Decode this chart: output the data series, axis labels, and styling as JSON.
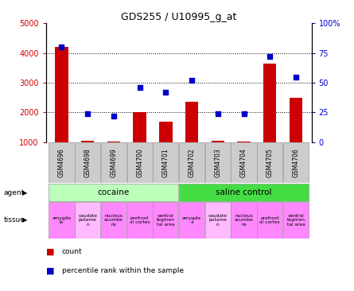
{
  "title": "GDS255 / U10995_g_at",
  "samples": [
    "GSM4696",
    "GSM4698",
    "GSM4699",
    "GSM4700",
    "GSM4701",
    "GSM4702",
    "GSM4703",
    "GSM4704",
    "GSM4705",
    "GSM4706"
  ],
  "counts": [
    4200,
    1050,
    1020,
    2000,
    1700,
    2350,
    1050,
    1020,
    3650,
    2500
  ],
  "percentiles": [
    80,
    24,
    22,
    46,
    42,
    52,
    24,
    24,
    72,
    55
  ],
  "ylim_left": [
    1000,
    5000
  ],
  "ylim_right": [
    0,
    100
  ],
  "yticks_left": [
    1000,
    2000,
    3000,
    4000,
    5000
  ],
  "yticks_right": [
    0,
    25,
    50,
    75,
    100
  ],
  "bar_color": "#cc0000",
  "scatter_color": "#0000cc",
  "agent_cocaine_color": "#bbffbb",
  "agent_saline_color": "#44dd44",
  "sample_bg_color": "#cccccc",
  "agent_groups": [
    {
      "label": "cocaine",
      "start": 0,
      "end": 5
    },
    {
      "label": "saline control",
      "start": 5,
      "end": 10
    }
  ],
  "tissue_labels": [
    {
      "label": "amygda\nla",
      "color": "#ff88ff"
    },
    {
      "label": "caudate\nputame\nn",
      "color": "#ffbbff"
    },
    {
      "label": "nucleus\nacumbe\nns",
      "color": "#ff88ff"
    },
    {
      "label": "prefront\nal cortex",
      "color": "#ff88ff"
    },
    {
      "label": "ventral\ntegmen\ntal area",
      "color": "#ff88ff"
    },
    {
      "label": "amygda\na",
      "color": "#ff88ff"
    },
    {
      "label": "caudate\nputame\nn",
      "color": "#ffbbff"
    },
    {
      "label": "nucleus\nacumbe\nns",
      "color": "#ff88ff"
    },
    {
      "label": "prefront\nal cortex",
      "color": "#ff88ff"
    },
    {
      "label": "ventral\ntegmen\ntal area",
      "color": "#ff88ff"
    }
  ],
  "legend_count_color": "#cc0000",
  "legend_scatter_color": "#0000cc",
  "left_axis_color": "#cc0000",
  "right_axis_color": "#0000cc",
  "fig_width": 4.45,
  "fig_height": 3.66,
  "dpi": 100
}
